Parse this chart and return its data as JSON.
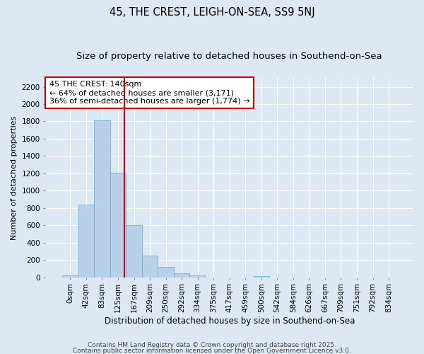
{
  "title": "45, THE CREST, LEIGH-ON-SEA, SS9 5NJ",
  "subtitle": "Size of property relative to detached houses in Southend-on-Sea",
  "xlabel": "Distribution of detached houses by size in Southend-on-Sea",
  "ylabel": "Number of detached properties",
  "categories": [
    "0sqm",
    "42sqm",
    "83sqm",
    "125sqm",
    "167sqm",
    "209sqm",
    "250sqm",
    "292sqm",
    "334sqm",
    "375sqm",
    "417sqm",
    "459sqm",
    "500sqm",
    "542sqm",
    "584sqm",
    "626sqm",
    "667sqm",
    "709sqm",
    "751sqm",
    "792sqm",
    "834sqm"
  ],
  "values": [
    20,
    840,
    1810,
    1210,
    600,
    250,
    120,
    45,
    25,
    0,
    0,
    0,
    10,
    0,
    0,
    0,
    0,
    0,
    0,
    0,
    0
  ],
  "bar_color": "#b8d0e8",
  "bar_edge_color": "#7aadd0",
  "vline_x": 3.4,
  "vline_color": "#cc0000",
  "annotation_text": "45 THE CREST: 140sqm\n← 64% of detached houses are smaller (3,171)\n36% of semi-detached houses are larger (1,774) →",
  "annotation_box_color": "#ffffff",
  "annotation_box_edge": "#cc0000",
  "ylim": [
    0,
    2300
  ],
  "yticks": [
    0,
    200,
    400,
    600,
    800,
    1000,
    1200,
    1400,
    1600,
    1800,
    2000,
    2200
  ],
  "bg_color": "#dce9f5",
  "grid_color": "#ffffff",
  "footer1": "Contains HM Land Registry data © Crown copyright and database right 2025.",
  "footer2": "Contains public sector information licensed under the Open Government Licence v3.0.",
  "title_fontsize": 10.5,
  "subtitle_fontsize": 9.5,
  "xlabel_fontsize": 8.5,
  "ylabel_fontsize": 8,
  "tick_fontsize": 7.5,
  "annotation_fontsize": 8,
  "footer_fontsize": 6.5
}
